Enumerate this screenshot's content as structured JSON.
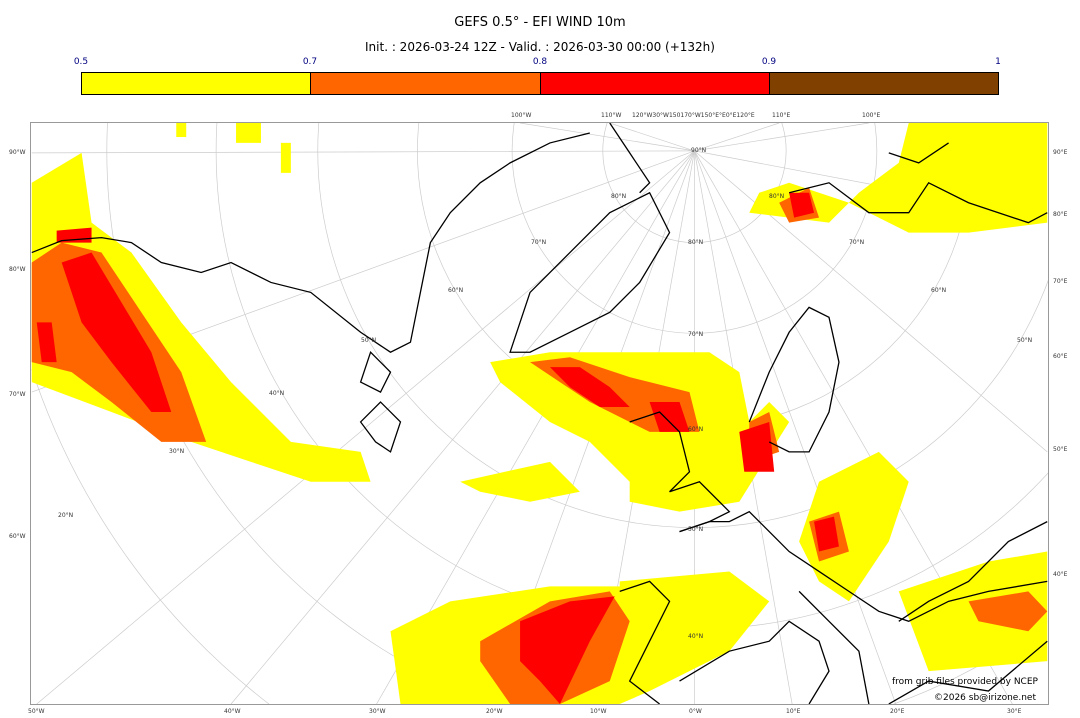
{
  "header": {
    "title": "GEFS 0.5° - EFI WIND 10m",
    "subtitle": "Init. : 2026-03-24 12Z - Valid. : 2026-03-30 00:00 (+132h)"
  },
  "colorbar": {
    "ticks": [
      "0.5",
      "0.7",
      "0.8",
      "0.9",
      "1"
    ],
    "colors": [
      "#ffff00",
      "#ff6600",
      "#ff0000",
      "#804000"
    ]
  },
  "map": {
    "left_labels": [
      "90°W",
      "80°W",
      "70°W",
      "60°W"
    ],
    "right_labels": [
      "90°E",
      "80°E",
      "70°E",
      "60°E",
      "50°E",
      "40°E"
    ],
    "bottom_labels": [
      "50°W",
      "40°W",
      "30°W",
      "20°W",
      "10°W",
      "0°W",
      "10°E",
      "20°E",
      "30°E"
    ],
    "top_labels": [
      "100°W",
      "110°W",
      "120°W30°W150170°W150°E°E0°E120°E",
      "110°E",
      "100°E"
    ],
    "center_lat_labels": [
      "90°N",
      "80°N",
      "70°N",
      "60°N",
      "50°N",
      "40°N"
    ],
    "left_lat_labels": [
      "80°N",
      "70°N",
      "60°N",
      "50°N",
      "40°N",
      "30°N",
      "20°N"
    ],
    "right_lat_labels": [
      "80°N",
      "70°N",
      "60°N",
      "50°N"
    ]
  },
  "annotations": {
    "source": "from grib files provided by NCEP",
    "copyright": "©2026 sb@irizone.net"
  }
}
